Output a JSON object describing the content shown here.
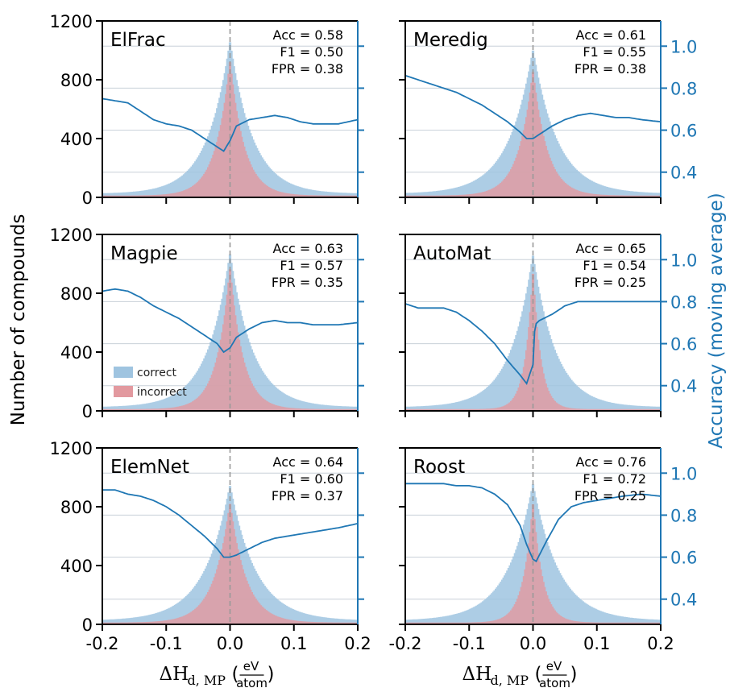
{
  "chart_data": {
    "type": "histogram_with_line",
    "ylabel": "Number of compounds",
    "ylabel_right": "Accuracy (moving average)",
    "xlabel": {
      "main": "ΔH",
      "sub": "d, MP",
      "open": "(",
      "num": "eV",
      "den": "atom",
      "close": ")"
    },
    "xlim": [
      -0.2,
      0.2
    ],
    "x_ticks": [
      "-0.2",
      "-0.1",
      "0.0",
      "0.1",
      "0.2"
    ],
    "ylim": [
      0,
      1200
    ],
    "y_ticks": [
      "0",
      "400",
      "800",
      "1200"
    ],
    "y_right_ticks": [
      "0.4",
      "0.6",
      "0.8",
      "1.0"
    ],
    "legend": {
      "correct": "correct",
      "incorrect": "incorrect",
      "placement": "center-left (Magpie panel)"
    },
    "colors": {
      "correct": "#9fc4e0",
      "incorrect": "#e2999f",
      "accuracy_line": "#1f77b4"
    },
    "panels": [
      {
        "title": "ElFrac",
        "acc": "Acc = 0.58",
        "f1": "F1 = 0.50",
        "fpr": "FPR = 0.38",
        "accuracy_x": [
          -0.2,
          -0.18,
          -0.16,
          -0.14,
          -0.12,
          -0.1,
          -0.08,
          -0.06,
          -0.04,
          -0.02,
          -0.01,
          0.0,
          0.01,
          0.03,
          0.05,
          0.07,
          0.09,
          0.11,
          0.13,
          0.15,
          0.17,
          0.2
        ],
        "accuracy_y": [
          0.75,
          0.74,
          0.73,
          0.69,
          0.65,
          0.63,
          0.62,
          0.6,
          0.56,
          0.52,
          0.5,
          0.55,
          0.62,
          0.65,
          0.66,
          0.67,
          0.66,
          0.64,
          0.63,
          0.63,
          0.63,
          0.65
        ],
        "peak_correct": 1060,
        "width_correct": 0.035,
        "peak_incorrect": 950,
        "width_incorrect": 0.022
      },
      {
        "title": "Meredig",
        "acc": "Acc = 0.61",
        "f1": "F1 = 0.55",
        "fpr": "FPR = 0.38",
        "accuracy_x": [
          -0.2,
          -0.18,
          -0.16,
          -0.14,
          -0.12,
          -0.1,
          -0.08,
          -0.06,
          -0.04,
          -0.02,
          -0.01,
          0.0,
          0.01,
          0.03,
          0.05,
          0.07,
          0.09,
          0.11,
          0.13,
          0.15,
          0.17,
          0.2
        ],
        "accuracy_y": [
          0.86,
          0.84,
          0.82,
          0.8,
          0.78,
          0.75,
          0.72,
          0.68,
          0.64,
          0.59,
          0.56,
          0.56,
          0.58,
          0.62,
          0.65,
          0.67,
          0.68,
          0.67,
          0.66,
          0.66,
          0.65,
          0.64
        ],
        "peak_correct": 1000,
        "width_correct": 0.038,
        "peak_incorrect": 880,
        "width_incorrect": 0.022
      },
      {
        "title": "Magpie",
        "acc": "Acc = 0.63",
        "f1": "F1 = 0.57",
        "fpr": "FPR = 0.35",
        "accuracy_x": [
          -0.2,
          -0.18,
          -0.16,
          -0.14,
          -0.12,
          -0.1,
          -0.08,
          -0.06,
          -0.04,
          -0.02,
          -0.01,
          0.0,
          0.01,
          0.03,
          0.05,
          0.07,
          0.09,
          0.11,
          0.13,
          0.15,
          0.17,
          0.2
        ],
        "accuracy_y": [
          0.85,
          0.86,
          0.85,
          0.82,
          0.78,
          0.75,
          0.72,
          0.68,
          0.64,
          0.6,
          0.56,
          0.58,
          0.63,
          0.67,
          0.7,
          0.71,
          0.7,
          0.7,
          0.69,
          0.69,
          0.69,
          0.7
        ],
        "peak_correct": 1070,
        "width_correct": 0.035,
        "peak_incorrect": 1000,
        "width_incorrect": 0.02
      },
      {
        "title": "AutoMat",
        "acc": "Acc = 0.65",
        "f1": "F1 = 0.54",
        "fpr": "FPR = 0.25",
        "accuracy_x": [
          -0.2,
          -0.18,
          -0.16,
          -0.14,
          -0.12,
          -0.1,
          -0.08,
          -0.06,
          -0.04,
          -0.02,
          -0.01,
          0.0,
          0.003,
          0.01,
          0.03,
          0.05,
          0.07,
          0.09,
          0.11,
          0.13,
          0.15,
          0.17,
          0.2
        ],
        "accuracy_y": [
          0.79,
          0.77,
          0.77,
          0.77,
          0.75,
          0.71,
          0.66,
          0.6,
          0.52,
          0.45,
          0.41,
          0.5,
          0.69,
          0.71,
          0.74,
          0.78,
          0.8,
          0.8,
          0.8,
          0.8,
          0.8,
          0.8,
          0.8
        ],
        "peak_correct": 1060,
        "width_correct": 0.035,
        "peak_incorrect": 1000,
        "width_incorrect": 0.012
      },
      {
        "title": "ElemNet",
        "acc": "Acc = 0.64",
        "f1": "F1 = 0.60",
        "fpr": "FPR = 0.37",
        "accuracy_x": [
          -0.2,
          -0.18,
          -0.16,
          -0.14,
          -0.12,
          -0.1,
          -0.08,
          -0.06,
          -0.04,
          -0.02,
          -0.01,
          0.0,
          0.01,
          0.03,
          0.05,
          0.07,
          0.09,
          0.11,
          0.13,
          0.15,
          0.17,
          0.2
        ],
        "accuracy_y": [
          0.92,
          0.92,
          0.9,
          0.89,
          0.87,
          0.84,
          0.8,
          0.75,
          0.7,
          0.64,
          0.6,
          0.6,
          0.61,
          0.64,
          0.67,
          0.69,
          0.7,
          0.71,
          0.72,
          0.73,
          0.74,
          0.76
        ],
        "peak_correct": 940,
        "width_correct": 0.04,
        "peak_incorrect": 840,
        "width_incorrect": 0.025
      },
      {
        "title": "Roost",
        "acc": "Acc = 0.76",
        "f1": "F1 = 0.72",
        "fpr": "FPR = 0.25",
        "accuracy_x": [
          -0.2,
          -0.18,
          -0.16,
          -0.14,
          -0.12,
          -0.1,
          -0.08,
          -0.06,
          -0.04,
          -0.02,
          -0.01,
          0.0,
          0.005,
          0.01,
          0.02,
          0.04,
          0.06,
          0.08,
          0.1,
          0.12,
          0.14,
          0.17,
          0.2
        ],
        "accuracy_y": [
          0.95,
          0.95,
          0.95,
          0.95,
          0.94,
          0.94,
          0.93,
          0.9,
          0.85,
          0.75,
          0.66,
          0.59,
          0.58,
          0.61,
          0.67,
          0.78,
          0.84,
          0.86,
          0.87,
          0.88,
          0.89,
          0.9,
          0.89
        ],
        "peak_correct": 950,
        "width_correct": 0.04,
        "peak_incorrect": 860,
        "width_incorrect": 0.015
      }
    ]
  }
}
